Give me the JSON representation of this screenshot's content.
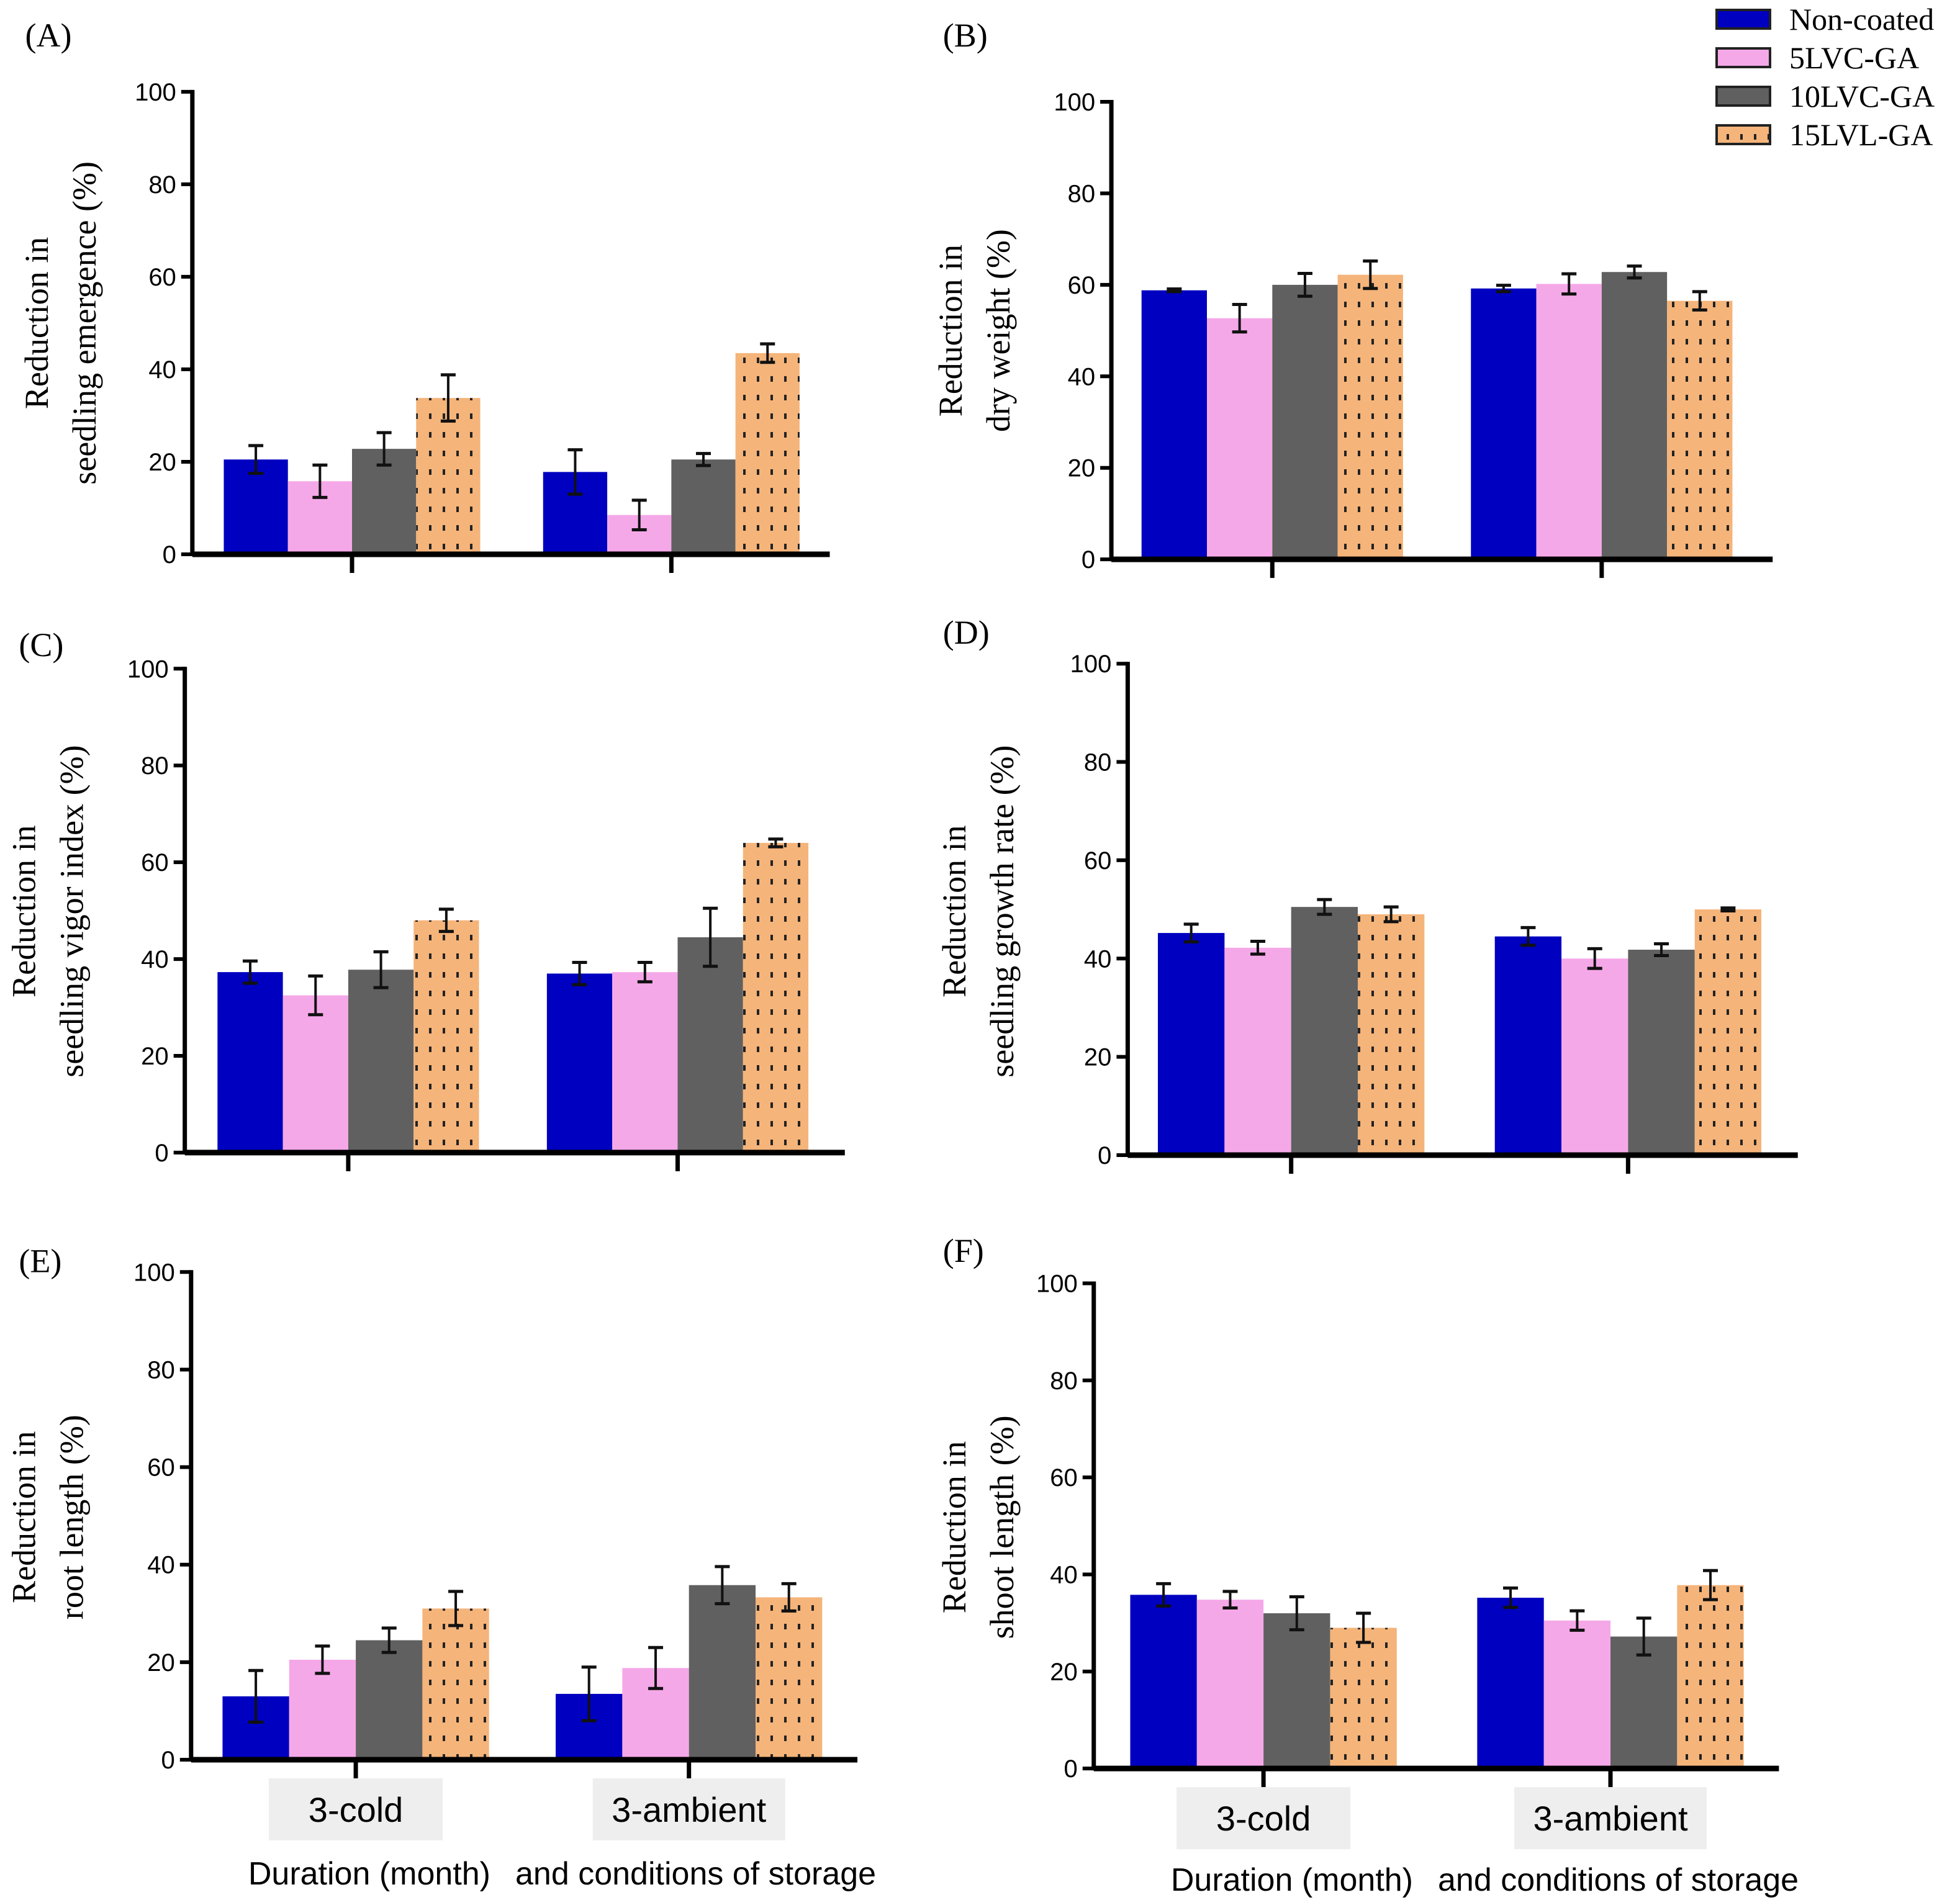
{
  "colors": {
    "Non-coated": "#0000c0",
    "5LVC-GA": "#f5a8e8",
    "10LVC-GA": "#606060",
    "15LVL-GA": "#f5b47a"
  },
  "legend": [
    "Non-coated",
    "5LVC-GA",
    "10LVC-GA",
    "15LVL-GA"
  ],
  "xlabel_part1": "Duration (month)",
  "xlabel_part2": "and conditions of storage",
  "chart_data": [
    {
      "type": "bar",
      "panel": "(A)",
      "ylabel": [
        "Reduction in",
        "seedling emergence (%)"
      ],
      "ylim": [
        0,
        100
      ],
      "yticks": [
        0,
        20,
        40,
        60,
        80,
        100
      ],
      "categories": [
        "3-cold",
        "3-ambient"
      ],
      "show_categories": false,
      "series": [
        {
          "name": "Non-coated",
          "values": [
            20.5,
            17.8
          ],
          "errors": [
            3,
            4.8
          ]
        },
        {
          "name": "5LVC-GA",
          "values": [
            15.8,
            8.5
          ],
          "errors": [
            3.5,
            3.2
          ]
        },
        {
          "name": "10LVC-GA",
          "values": [
            22.8,
            20.5
          ],
          "errors": [
            3.5,
            1.3
          ]
        },
        {
          "name": "15LVL-GA",
          "values": [
            33.8,
            43.5
          ],
          "errors": [
            5,
            2
          ]
        }
      ]
    },
    {
      "type": "bar",
      "panel": "(B)",
      "ylabel": [
        "Reduction in",
        "dry weight (%)"
      ],
      "ylim": [
        0,
        100
      ],
      "yticks": [
        0,
        20,
        40,
        60,
        80,
        100
      ],
      "categories": [
        "3-cold",
        "3-ambient"
      ],
      "show_categories": false,
      "series": [
        {
          "name": "Non-coated",
          "values": [
            58.8,
            59.2
          ],
          "errors": [
            0.3,
            0.7
          ]
        },
        {
          "name": "5LVC-GA",
          "values": [
            52.7,
            60.2
          ],
          "errors": [
            3,
            2.2
          ]
        },
        {
          "name": "10LVC-GA",
          "values": [
            60,
            62.8
          ],
          "errors": [
            2.5,
            1.3
          ]
        },
        {
          "name": "15LVL-GA",
          "values": [
            62.2,
            56.5
          ],
          "errors": [
            3,
            2
          ]
        }
      ]
    },
    {
      "type": "bar",
      "panel": "(C)",
      "ylabel": [
        "Reduction in",
        "seedling vigor index (%)"
      ],
      "ylim": [
        0,
        100
      ],
      "yticks": [
        0,
        20,
        40,
        60,
        80,
        100
      ],
      "categories": [
        "3-cold",
        "3-ambient"
      ],
      "show_categories": false,
      "series": [
        {
          "name": "Non-coated",
          "values": [
            37.3,
            37
          ],
          "errors": [
            2.3,
            2.3
          ]
        },
        {
          "name": "5LVC-GA",
          "values": [
            32.5,
            37.3
          ],
          "errors": [
            4,
            2
          ]
        },
        {
          "name": "10LVC-GA",
          "values": [
            37.8,
            44.5
          ],
          "errors": [
            3.7,
            6
          ]
        },
        {
          "name": "15LVL-GA",
          "values": [
            48,
            64
          ],
          "errors": [
            2.3,
            0.8
          ]
        }
      ]
    },
    {
      "type": "bar",
      "panel": "(D)",
      "ylabel": [
        "Reduction in",
        "seedling growth rate (%)"
      ],
      "ylim": [
        0,
        100
      ],
      "yticks": [
        0,
        20,
        40,
        60,
        80,
        100
      ],
      "categories": [
        "3-cold",
        "3-ambient"
      ],
      "show_categories": false,
      "series": [
        {
          "name": "Non-coated",
          "values": [
            45.2,
            44.5
          ],
          "errors": [
            1.8,
            1.8
          ]
        },
        {
          "name": "5LVC-GA",
          "values": [
            42.2,
            40
          ],
          "errors": [
            1.3,
            2
          ]
        },
        {
          "name": "10LVC-GA",
          "values": [
            50.5,
            41.8
          ],
          "errors": [
            1.5,
            1.2
          ]
        },
        {
          "name": "15LVL-GA",
          "values": [
            49,
            50
          ],
          "errors": [
            1.5,
            0.3
          ]
        }
      ]
    },
    {
      "type": "bar",
      "panel": "(E)",
      "ylabel": [
        "Reduction in",
        "root length (%)"
      ],
      "ylim": [
        0,
        100
      ],
      "yticks": [
        0,
        20,
        40,
        60,
        80,
        100
      ],
      "categories": [
        "3-cold",
        "3-ambient"
      ],
      "show_categories": true,
      "series": [
        {
          "name": "Non-coated",
          "values": [
            13,
            13.5
          ],
          "errors": [
            5.3,
            5.5
          ]
        },
        {
          "name": "5LVC-GA",
          "values": [
            20.5,
            18.8
          ],
          "errors": [
            2.8,
            4.2
          ]
        },
        {
          "name": "10LVC-GA",
          "values": [
            24.5,
            35.8
          ],
          "errors": [
            2.5,
            3.8
          ]
        },
        {
          "name": "15LVL-GA",
          "values": [
            31,
            33.3
          ],
          "errors": [
            3.5,
            2.8
          ]
        }
      ]
    },
    {
      "type": "bar",
      "panel": "(F)",
      "ylabel": [
        "Reduction in",
        "shoot length (%)"
      ],
      "ylim": [
        0,
        100
      ],
      "yticks": [
        0,
        20,
        40,
        60,
        80,
        100
      ],
      "categories": [
        "3-cold",
        "3-ambient"
      ],
      "show_categories": true,
      "series": [
        {
          "name": "Non-coated",
          "values": [
            35.8,
            35.2
          ],
          "errors": [
            2.3,
            2
          ]
        },
        {
          "name": "5LVC-GA",
          "values": [
            34.8,
            30.5
          ],
          "errors": [
            1.7,
            2
          ]
        },
        {
          "name": "10LVC-GA",
          "values": [
            32,
            27.2
          ],
          "errors": [
            3.4,
            3.8
          ]
        },
        {
          "name": "15LVL-GA",
          "values": [
            29,
            37.8
          ],
          "errors": [
            3,
            3
          ]
        }
      ]
    }
  ]
}
